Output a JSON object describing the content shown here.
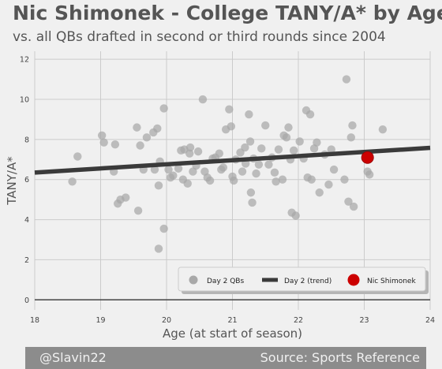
{
  "header": {
    "title": "Nic Shimonek - College TANY/A* by Age",
    "subtitle": "vs. all QBs drafted in second or third rounds since 2004"
  },
  "footer": {
    "credit": "@Slavin22",
    "source": "Source: Sports Reference"
  },
  "chart_data": {
    "type": "scatter",
    "xlabel": "Age (at start of season)",
    "ylabel": "TANY/A*",
    "xlim": [
      18,
      24
    ],
    "ylim": [
      -0.5,
      12.4
    ],
    "xticks": [
      18,
      19,
      20,
      21,
      22,
      23,
      24
    ],
    "yticks": [
      0,
      2,
      4,
      6,
      8,
      10,
      12
    ],
    "grid": true,
    "legend_position": "bottom-right",
    "colors": {
      "day2": "#a8a8a8",
      "trend": "#3a3a3a",
      "highlight": "#cc0000",
      "axis_text": "#555555",
      "grid": "#cbcbcb"
    },
    "series": [
      {
        "name": "Day 2 QBs",
        "kind": "scatter",
        "points": [
          [
            18.57,
            5.9
          ],
          [
            18.65,
            7.15
          ],
          [
            19.02,
            8.2
          ],
          [
            19.05,
            7.85
          ],
          [
            19.2,
            6.4
          ],
          [
            19.22,
            7.75
          ],
          [
            19.26,
            4.8
          ],
          [
            19.3,
            5.0
          ],
          [
            19.38,
            5.1
          ],
          [
            19.55,
            8.6
          ],
          [
            19.57,
            4.45
          ],
          [
            19.6,
            7.7
          ],
          [
            19.65,
            6.5
          ],
          [
            19.7,
            8.1
          ],
          [
            19.8,
            8.35
          ],
          [
            19.82,
            6.5
          ],
          [
            19.86,
            8.55
          ],
          [
            19.88,
            5.7
          ],
          [
            19.9,
            6.9
          ],
          [
            19.96,
            9.55
          ],
          [
            19.96,
            3.55
          ],
          [
            19.88,
            2.55
          ],
          [
            20.03,
            6.5
          ],
          [
            20.06,
            6.1
          ],
          [
            20.1,
            6.2
          ],
          [
            20.18,
            6.55
          ],
          [
            20.22,
            7.45
          ],
          [
            20.25,
            6.0
          ],
          [
            20.27,
            7.5
          ],
          [
            20.32,
            5.8
          ],
          [
            20.35,
            7.3
          ],
          [
            20.36,
            7.6
          ],
          [
            20.4,
            6.4
          ],
          [
            20.45,
            6.7
          ],
          [
            20.48,
            7.4
          ],
          [
            20.55,
            10.0
          ],
          [
            20.58,
            6.4
          ],
          [
            20.62,
            6.1
          ],
          [
            20.66,
            5.95
          ],
          [
            20.7,
            7.05
          ],
          [
            20.74,
            7.1
          ],
          [
            20.8,
            7.3
          ],
          [
            20.83,
            6.5
          ],
          [
            20.86,
            6.6
          ],
          [
            20.9,
            8.5
          ],
          [
            20.95,
            9.5
          ],
          [
            20.98,
            8.65
          ],
          [
            21.0,
            6.15
          ],
          [
            21.02,
            5.95
          ],
          [
            21.05,
            7.0
          ],
          [
            21.12,
            7.35
          ],
          [
            21.15,
            6.4
          ],
          [
            21.19,
            7.6
          ],
          [
            21.2,
            6.8
          ],
          [
            21.25,
            9.25
          ],
          [
            21.27,
            7.9
          ],
          [
            21.28,
            5.35
          ],
          [
            21.3,
            4.85
          ],
          [
            21.32,
            7.05
          ],
          [
            21.36,
            6.3
          ],
          [
            21.4,
            6.75
          ],
          [
            21.44,
            7.55
          ],
          [
            21.5,
            8.7
          ],
          [
            21.55,
            6.75
          ],
          [
            21.6,
            7.1
          ],
          [
            21.64,
            6.35
          ],
          [
            21.66,
            5.9
          ],
          [
            21.7,
            7.5
          ],
          [
            21.76,
            6.0
          ],
          [
            21.78,
            8.2
          ],
          [
            21.82,
            8.1
          ],
          [
            21.85,
            8.6
          ],
          [
            21.88,
            7.0
          ],
          [
            21.9,
            4.35
          ],
          [
            21.93,
            7.45
          ],
          [
            21.96,
            4.2
          ],
          [
            22.02,
            7.9
          ],
          [
            22.08,
            7.05
          ],
          [
            22.12,
            9.45
          ],
          [
            22.14,
            6.1
          ],
          [
            22.18,
            9.25
          ],
          [
            22.2,
            6.0
          ],
          [
            22.24,
            7.55
          ],
          [
            22.28,
            7.85
          ],
          [
            22.32,
            5.35
          ],
          [
            22.4,
            7.25
          ],
          [
            22.46,
            5.75
          ],
          [
            22.5,
            7.5
          ],
          [
            22.54,
            6.5
          ],
          [
            22.7,
            6.0
          ],
          [
            22.73,
            11.0
          ],
          [
            22.76,
            4.9
          ],
          [
            22.8,
            8.1
          ],
          [
            22.82,
            8.7
          ],
          [
            22.84,
            4.65
          ],
          [
            23.05,
            6.4
          ],
          [
            23.08,
            6.25
          ],
          [
            23.28,
            8.5
          ]
        ]
      },
      {
        "name": "Day 2 (trend)",
        "kind": "line",
        "x": [
          18,
          24
        ],
        "y": [
          6.35,
          7.58
        ]
      },
      {
        "name": "Nic Shimonek",
        "kind": "scatter",
        "points": [
          [
            23.05,
            7.1
          ]
        ]
      }
    ]
  }
}
